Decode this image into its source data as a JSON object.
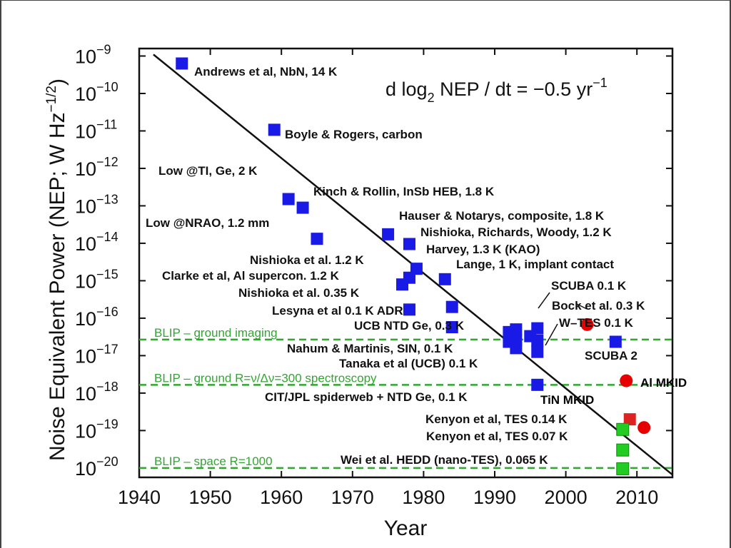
{
  "chart_data": {
    "type": "scatter",
    "xlabel": "Year",
    "ylabel": "Noise Equivalent Power (NEP; W Hz",
    "ylabel_exp": "−1/2",
    "ylabel_close": ")",
    "xlim": [
      1940,
      2015
    ],
    "ylim_log10": [
      -20.25,
      -8.8
    ],
    "y_scale": "log",
    "x_ticks": [
      1940,
      1950,
      1960,
      1970,
      1980,
      1990,
      2000,
      2010
    ],
    "y_ticks_exp": [
      -9,
      -10,
      -11,
      -12,
      -13,
      -14,
      -15,
      -16,
      -17,
      -18,
      -19,
      -20
    ],
    "y_tick_base": "10",
    "annotation": {
      "pre": "d log",
      "sub": "2",
      "mid": " NEP / dt = −0.5 yr",
      "sup": "−1"
    },
    "trend_line": {
      "x": [
        1942,
        2015
      ],
      "log10_y": [
        -8.96,
        -20.18
      ]
    },
    "blip_lines": [
      {
        "label": "BLIP – ground imaging",
        "log10_y": -16.57
      },
      {
        "label": "BLIP – ground R=ν/Δν=300 spectroscopy",
        "log10_y": -17.78
      },
      {
        "label": "BLIP – space R=1000",
        "log10_y": -20.0
      }
    ],
    "series": [
      {
        "marker": "square",
        "color": "#1a1ae6",
        "points": [
          {
            "x": 1946,
            "y": -9.2
          },
          {
            "x": 1959,
            "y": -10.97
          },
          {
            "x": 1961,
            "y": -12.82
          },
          {
            "x": 1963,
            "y": -13.05
          },
          {
            "x": 1965,
            "y": -13.88
          },
          {
            "x": 1975,
            "y": -13.76
          },
          {
            "x": 1978,
            "y": -14.02
          },
          {
            "x": 1979,
            "y": -14.68
          },
          {
            "x": 1978,
            "y": -14.92
          },
          {
            "x": 1977,
            "y": -15.1
          },
          {
            "x": 1983,
            "y": -14.96
          },
          {
            "x": 1978,
            "y": -15.77
          },
          {
            "x": 1984,
            "y": -15.7
          },
          {
            "x": 1984,
            "y": -16.24
          },
          {
            "x": 1992,
            "y": -16.37
          },
          {
            "x": 1993,
            "y": -16.3
          },
          {
            "x": 1996,
            "y": -16.27
          },
          {
            "x": 1992,
            "y": -16.63
          },
          {
            "x": 1993,
            "y": -16.58
          },
          {
            "x": 1995,
            "y": -16.48
          },
          {
            "x": 1996,
            "y": -16.6
          },
          {
            "x": 1993,
            "y": -16.8
          },
          {
            "x": 1996,
            "y": -16.9
          },
          {
            "x": 1996,
            "y": -17.78
          },
          {
            "x": 2007,
            "y": -16.63
          }
        ]
      },
      {
        "marker": "circle",
        "color": "#e60000",
        "points": [
          {
            "x": 2003,
            "y": -16.17
          },
          {
            "x": 2008.5,
            "y": -17.67
          },
          {
            "x": 2011,
            "y": -18.92
          }
        ]
      },
      {
        "marker": "square",
        "color": "#dd2222",
        "points": [
          {
            "x": 2009,
            "y": -18.7
          }
        ]
      },
      {
        "marker": "square",
        "color": "#22cc22",
        "points": [
          {
            "x": 2008,
            "y": -18.97
          },
          {
            "x": 2008,
            "y": -19.52
          },
          {
            "x": 2008,
            "y": -20.02
          }
        ]
      }
    ],
    "labels": [
      {
        "text": "Andrews et al, NbN, 14 K"
      },
      {
        "text": "Boyle & Rogers, carbon"
      },
      {
        "text": "Low @TI, Ge, 2 K"
      },
      {
        "text": "Kinch & Rollin, InSb HEB, 1.8 K"
      },
      {
        "text": "Low @NRAO, 1.2 mm"
      },
      {
        "text": "Hauser & Notarys, composite, 1.8 K"
      },
      {
        "text": "Nishioka, Richards, Woody, 1.2 K"
      },
      {
        "text": "Harvey, 1.3 K (KAO)"
      },
      {
        "text": "Nishioka et al. 1.2 K"
      },
      {
        "text": "Lange, 1 K, implant contact"
      },
      {
        "text": "Clarke et al, Al supercon. 1.2 K"
      },
      {
        "text": "Nishioka et al. 0.35 K"
      },
      {
        "text": "SCUBA 0.1 K"
      },
      {
        "text": "Bock et al. 0.3 K"
      },
      {
        "text": "Lesyna et al 0.1 K ADR"
      },
      {
        "text": "UCB NTD Ge, 0.3 K"
      },
      {
        "text": "W–TES 0.1 K"
      },
      {
        "text": "Nahum & Martinis, SIN, 0.1 K"
      },
      {
        "text": "SCUBA 2"
      },
      {
        "text": "Tanaka et al (UCB) 0.1 K"
      },
      {
        "text": "CIT/JPL spiderweb + NTD Ge, 0.1 K"
      },
      {
        "text": "Kenyon et al, TES 0.14 K"
      },
      {
        "text": "Kenyon et al, TES 0.07 K"
      },
      {
        "text": "Wei et al. HEDD (nano-TES), 0.065 K"
      }
    ],
    "mkid_labels": [
      {
        "text": "Al MKID",
        "color": "#e60000"
      },
      {
        "text": "TiN MKID",
        "color": "#e60000"
      }
    ]
  }
}
